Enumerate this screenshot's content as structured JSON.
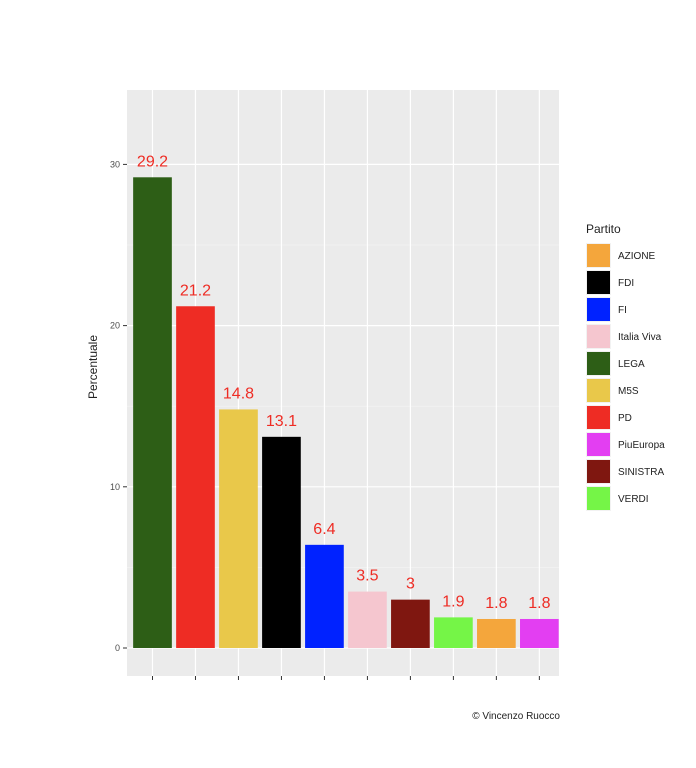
{
  "chart_data": {
    "type": "bar",
    "categories": [
      "LEGA",
      "PD",
      "M5S",
      "FDI",
      "FI",
      "Italia Viva",
      "SINISTRA",
      "VERDI",
      "AZIONE",
      "PiuEuropa"
    ],
    "values": [
      29.2,
      21.2,
      14.8,
      13.1,
      6.4,
      3.5,
      3,
      1.9,
      1.8,
      1.8
    ],
    "value_labels": [
      "29.2",
      "21.2",
      "14.8",
      "13.1",
      "6.4",
      "3.5",
      "3",
      "1.9",
      "1.8",
      "1.8"
    ],
    "colors": [
      "#2d5e16",
      "#ee2c24",
      "#e9c84a",
      "#000000",
      "#0022ff",
      "#f5c6cf",
      "#7f1710",
      "#75f547",
      "#f4a63c",
      "#e33ef2"
    ],
    "ylabel": "Percentuale",
    "xlabel": "",
    "ylim": [
      0,
      31.2
    ],
    "yticks": [
      0,
      10,
      20,
      30
    ],
    "ytick_labels": [
      "0",
      "10",
      "20",
      "30"
    ],
    "grid": true,
    "data_label_color": "#ee2c24",
    "panel_background": "#ebebeb",
    "legend": {
      "title": "Partito",
      "position": "right",
      "items": [
        {
          "label": "AZIONE",
          "color": "#f4a63c"
        },
        {
          "label": "FDI",
          "color": "#000000"
        },
        {
          "label": "FI",
          "color": "#0022ff"
        },
        {
          "label": "Italia Viva",
          "color": "#f5c6cf"
        },
        {
          "label": "LEGA",
          "color": "#2d5e16"
        },
        {
          "label": "M5S",
          "color": "#e9c84a"
        },
        {
          "label": "PD",
          "color": "#ee2c24"
        },
        {
          "label": "PiuEuropa",
          "color": "#e33ef2"
        },
        {
          "label": "SINISTRA",
          "color": "#7f1710"
        },
        {
          "label": "VERDI",
          "color": "#75f547"
        }
      ]
    },
    "caption": "© Vincenzo Ruocco"
  }
}
